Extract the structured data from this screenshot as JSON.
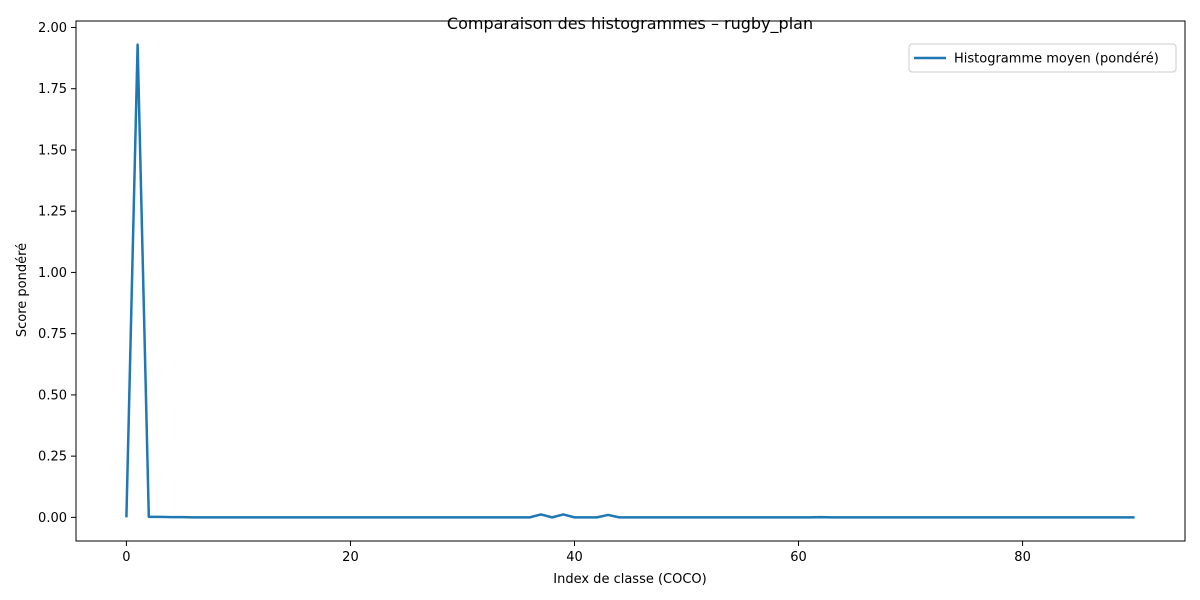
{
  "chart_data": {
    "type": "line",
    "title": "Comparaison des histogrammes – rugby_plan",
    "xlabel": "Index de classe (COCO)",
    "ylabel": "Score pondéré",
    "xlim": [
      -4.5,
      94.5
    ],
    "ylim": [
      -0.0965,
      2.0265
    ],
    "x_ticks": [
      0,
      20,
      40,
      60,
      80
    ],
    "y_ticks": [
      0.0,
      0.25,
      0.5,
      0.75,
      1.0,
      1.25,
      1.5,
      1.75,
      2.0
    ],
    "x_tick_labels": [
      "0",
      "20",
      "40",
      "60",
      "80"
    ],
    "y_tick_labels": [
      "0.00",
      "0.25",
      "0.50",
      "0.75",
      "1.00",
      "1.25",
      "1.50",
      "1.75",
      "2.00"
    ],
    "grid": false,
    "legend_position": "top-right",
    "series": [
      {
        "name": "Histogramme moyen (pondéré)",
        "color": "#1f77b4",
        "x": [
          0,
          1,
          2,
          3,
          4,
          5,
          6,
          7,
          8,
          9,
          10,
          11,
          12,
          13,
          14,
          15,
          16,
          17,
          18,
          19,
          20,
          21,
          22,
          23,
          24,
          25,
          26,
          27,
          28,
          29,
          30,
          31,
          32,
          33,
          34,
          35,
          36,
          37,
          38,
          39,
          40,
          41,
          42,
          43,
          44,
          45,
          46,
          47,
          48,
          49,
          50,
          51,
          52,
          53,
          54,
          55,
          56,
          57,
          58,
          59,
          60,
          61,
          62,
          63,
          64,
          65,
          66,
          67,
          68,
          69,
          70,
          71,
          72,
          73,
          74,
          75,
          76,
          77,
          78,
          79,
          80,
          81,
          82,
          83,
          84,
          85,
          86,
          87,
          88,
          89,
          90
        ],
        "values": [
          0,
          1.93,
          0.002,
          0.002,
          0.001,
          0.001,
          0,
          0,
          0,
          0,
          0,
          0,
          0,
          0,
          0,
          0,
          0,
          0,
          0,
          0,
          0,
          0,
          0,
          0,
          0,
          0,
          0,
          0,
          0,
          0,
          0,
          0,
          0,
          0,
          0,
          0,
          0,
          0.012,
          0,
          0.012,
          0,
          0,
          0,
          0.01,
          0,
          0,
          0,
          0,
          0,
          0,
          0,
          0,
          0,
          0,
          0,
          0,
          0,
          0,
          0,
          0,
          0,
          0,
          0.001,
          0,
          0,
          0,
          0,
          0,
          0,
          0,
          0,
          0,
          0,
          0,
          0,
          0,
          0,
          0,
          0,
          0,
          0,
          0,
          0,
          0,
          0,
          0,
          0,
          0,
          0,
          0,
          0
        ]
      }
    ]
  }
}
